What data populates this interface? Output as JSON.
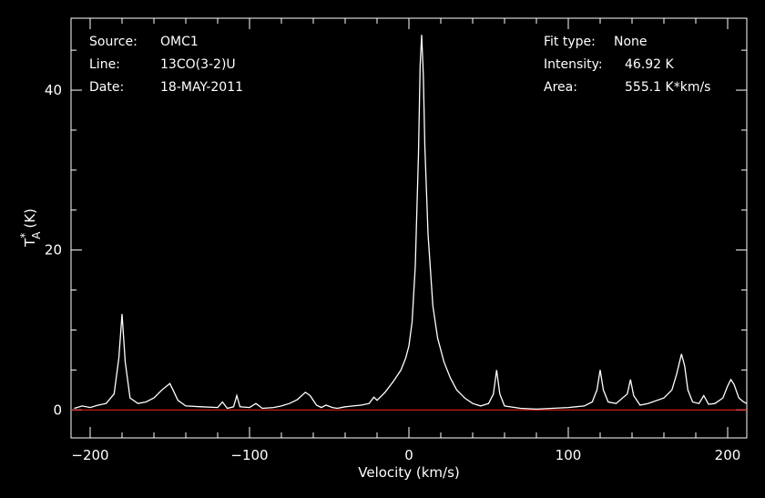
{
  "header_left": {
    "source_label": "Source:",
    "source_value": "OMC1",
    "line_label": "Line:",
    "line_value": "13CO(3-2)U",
    "date_label": "Date:",
    "date_value": "18-MAY-2011"
  },
  "header_right": {
    "fit_label": "Fit type:",
    "fit_value": "None",
    "intensity_label": "Intensity:",
    "intensity_value": "46.92 K",
    "area_label": "Area:",
    "area_value": "555.1 K*km/s"
  },
  "colors": {
    "background": "#000000",
    "axes": "#ffffff",
    "spectrum": "#ffffff",
    "baseline": "#ff2020"
  },
  "chart_data": {
    "type": "line",
    "xlabel": "Velocity (km/s)",
    "ylabel_main": "T",
    "ylabel_sup": "*",
    "ylabel_sub": "A",
    "ylabel_unit": "(K)",
    "xlim": [
      -212,
      212
    ],
    "ylim": [
      -3.5,
      49
    ],
    "xticks": [
      -200,
      -100,
      0,
      100,
      200
    ],
    "xtick_labels": [
      "−200",
      "−100",
      "0",
      "100",
      "200"
    ],
    "yticks": [
      0,
      20,
      40
    ],
    "ytick_labels": [
      "0",
      "20",
      "40"
    ],
    "baseline_value": 0,
    "series": [
      {
        "x": [
          -210,
          -205,
          -200,
          -195,
          -190,
          -185,
          -182,
          -180,
          -178,
          -175,
          -170,
          -165,
          -160,
          -155,
          -150,
          -148,
          -145,
          -140,
          -130,
          -120,
          -117,
          -114,
          -110,
          -108,
          -106,
          -100,
          -96,
          -92,
          -85,
          -80,
          -75,
          -70,
          -65,
          -62,
          -58,
          -55,
          -52,
          -48,
          -45,
          -40,
          -35,
          -30,
          -25,
          -22,
          -20,
          -15,
          -10,
          -5,
          -2,
          0,
          2,
          4,
          6,
          7,
          8,
          9,
          10,
          12,
          15,
          18,
          22,
          26,
          30,
          35,
          40,
          45,
          50,
          53,
          55,
          57,
          60,
          70,
          80,
          90,
          100,
          110,
          115,
          118,
          120,
          122,
          125,
          130,
          137,
          139,
          141,
          145,
          150,
          160,
          165,
          168,
          171,
          173,
          175,
          178,
          182,
          185,
          188,
          192,
          197,
          200,
          202,
          204,
          207,
          210,
          212
        ],
        "y": [
          0.2,
          0.5,
          0.3,
          0.6,
          0.8,
          2.0,
          6.5,
          12.0,
          6.0,
          1.5,
          0.8,
          1.0,
          1.5,
          2.5,
          3.3,
          2.5,
          1.2,
          0.5,
          0.4,
          0.3,
          1.0,
          0.2,
          0.4,
          1.8,
          0.4,
          0.3,
          0.8,
          0.2,
          0.3,
          0.5,
          0.8,
          1.3,
          2.2,
          1.8,
          0.6,
          0.3,
          0.6,
          0.3,
          0.2,
          0.4,
          0.5,
          0.6,
          0.8,
          1.6,
          1.2,
          2.2,
          3.5,
          5.0,
          6.5,
          8.0,
          11.0,
          18.0,
          32.0,
          43.0,
          46.92,
          42.0,
          33.0,
          22.0,
          13.0,
          9.0,
          6.0,
          4.0,
          2.5,
          1.5,
          0.8,
          0.5,
          0.8,
          2.0,
          5.0,
          2.0,
          0.5,
          0.2,
          0.1,
          0.2,
          0.3,
          0.5,
          1.0,
          2.5,
          5.0,
          2.5,
          1.0,
          0.8,
          2.0,
          3.8,
          1.8,
          0.6,
          0.8,
          1.5,
          2.5,
          4.5,
          7.0,
          5.5,
          2.5,
          1.0,
          0.8,
          1.8,
          0.7,
          0.8,
          1.5,
          3.0,
          3.8,
          3.2,
          1.5,
          1.0,
          0.8
        ]
      }
    ]
  }
}
